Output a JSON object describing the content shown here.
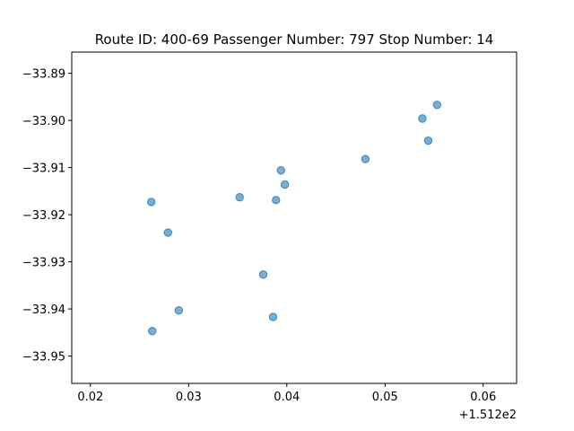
{
  "chart_data": {
    "type": "scatter",
    "title": "Route ID: 400-69  Passenger Number: 797  Stop Number: 14",
    "xlabel": "",
    "ylabel": "",
    "x_offset_label": "+1.512e2",
    "xlim": [
      0.0181,
      0.0634
    ],
    "ylim": [
      -33.9558,
      -33.8855
    ],
    "x_ticks": [
      0.02,
      0.03,
      0.04,
      0.05,
      0.06
    ],
    "x_tick_labels": [
      "0.02",
      "0.03",
      "0.04",
      "0.05",
      "0.06"
    ],
    "y_ticks": [
      -33.89,
      -33.9,
      -33.91,
      -33.92,
      -33.93,
      -33.94,
      -33.95
    ],
    "y_tick_labels": [
      "−33.89",
      "−33.90",
      "−33.91",
      "−33.92",
      "−33.93",
      "−33.94",
      "−33.95"
    ],
    "grid": false,
    "color": "#1f77b4",
    "points": [
      {
        "x": 0.0553,
        "y": -33.8967
      },
      {
        "x": 0.0538,
        "y": -33.8996
      },
      {
        "x": 0.0544,
        "y": -33.9043
      },
      {
        "x": 0.048,
        "y": -33.9082
      },
      {
        "x": 0.0394,
        "y": -33.9106
      },
      {
        "x": 0.0398,
        "y": -33.9136
      },
      {
        "x": 0.0352,
        "y": -33.9163
      },
      {
        "x": 0.0389,
        "y": -33.9169
      },
      {
        "x": 0.0262,
        "y": -33.9173
      },
      {
        "x": 0.0279,
        "y": -33.9238
      },
      {
        "x": 0.0376,
        "y": -33.9327
      },
      {
        "x": 0.029,
        "y": -33.9403
      },
      {
        "x": 0.0386,
        "y": -33.9417
      },
      {
        "x": 0.0263,
        "y": -33.9447
      }
    ]
  }
}
